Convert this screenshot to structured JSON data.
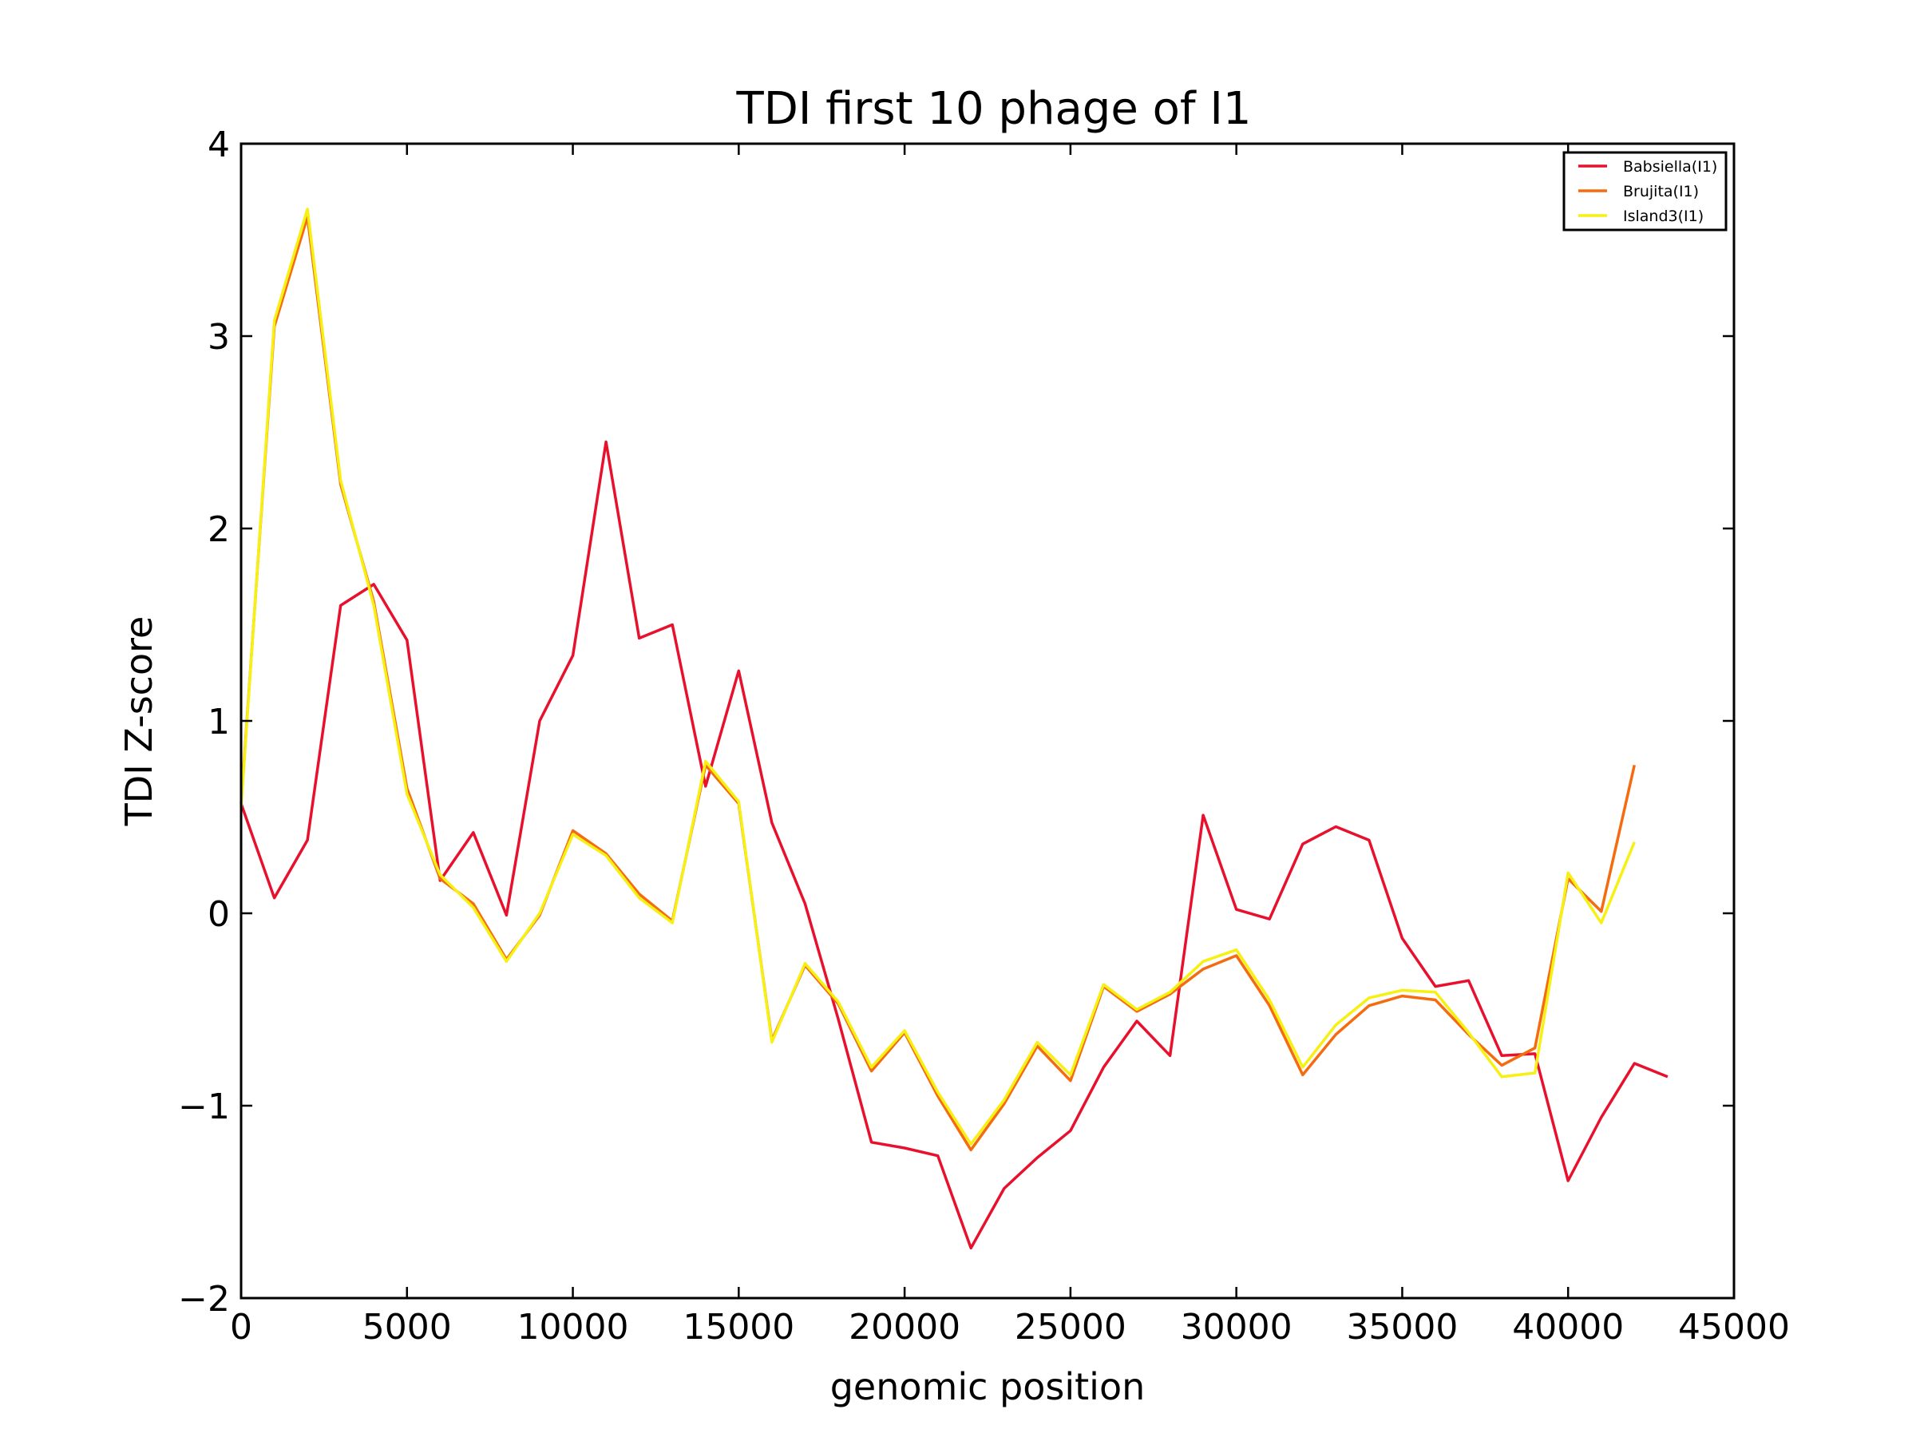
{
  "chart_data": {
    "type": "line",
    "title": "TDI first 10 phage of I1",
    "xlabel": "genomic position",
    "ylabel": "TDI Z-score",
    "xlim": [
      0,
      45000
    ],
    "ylim": [
      -2,
      4
    ],
    "xticks": [
      0,
      5000,
      10000,
      15000,
      20000,
      25000,
      30000,
      35000,
      40000,
      45000
    ],
    "xtick_labels": [
      "0",
      "5000",
      "10000",
      "15000",
      "20000",
      "25000",
      "30000",
      "35000",
      "40000",
      "45000"
    ],
    "yticks": [
      -2,
      -1,
      0,
      1,
      2,
      3,
      4
    ],
    "ytick_labels": [
      "−2",
      "−1",
      "0",
      "1",
      "2",
      "3",
      "4"
    ],
    "grid": false,
    "legend_position": "top-right",
    "series": [
      {
        "name": "Babsiella(I1)",
        "color": "#e8112d",
        "x": [
          0,
          1000,
          2000,
          3000,
          4000,
          5000,
          6000,
          7000,
          8000,
          9000,
          10000,
          11000,
          12000,
          13000,
          14000,
          15000,
          16000,
          17000,
          18000,
          19000,
          20000,
          21000,
          22000,
          23000,
          24000,
          25000,
          26000,
          27000,
          28000,
          29000,
          30000,
          31000,
          32000,
          33000,
          34000,
          35000,
          36000,
          37000,
          38000,
          39000,
          40000,
          41000,
          42000,
          43000
        ],
        "y": [
          0.57,
          0.08,
          0.38,
          1.6,
          1.71,
          1.42,
          0.17,
          0.42,
          -0.01,
          1.0,
          1.34,
          2.45,
          1.43,
          1.5,
          0.66,
          1.26,
          0.47,
          0.05,
          -0.55,
          -1.19,
          -1.22,
          -1.26,
          -1.74,
          -1.43,
          -1.27,
          -1.13,
          -0.8,
          -0.56,
          -0.74,
          0.51,
          0.02,
          -0.03,
          0.36,
          0.45,
          0.38,
          -0.13,
          -0.38,
          -0.35,
          -0.74,
          -0.73,
          -1.39,
          -1.06,
          -0.78,
          -0.85
        ]
      },
      {
        "name": "Brujita(I1)",
        "color": "#f56b0f",
        "x": [
          0,
          1000,
          2000,
          3000,
          4000,
          5000,
          6000,
          7000,
          8000,
          9000,
          10000,
          11000,
          12000,
          13000,
          14000,
          15000,
          16000,
          17000,
          18000,
          19000,
          20000,
          21000,
          22000,
          23000,
          24000,
          25000,
          26000,
          27000,
          28000,
          29000,
          30000,
          31000,
          32000,
          33000,
          34000,
          35000,
          36000,
          37000,
          38000,
          39000,
          40000,
          41000,
          42000
        ],
        "y": [
          0.57,
          3.05,
          3.62,
          2.23,
          1.62,
          0.65,
          0.18,
          0.05,
          -0.24,
          -0.01,
          0.43,
          0.31,
          0.1,
          -0.04,
          0.77,
          0.57,
          -0.66,
          -0.27,
          -0.47,
          -0.82,
          -0.62,
          -0.95,
          -1.23,
          -0.99,
          -0.69,
          -0.87,
          -0.38,
          -0.51,
          -0.42,
          -0.29,
          -0.22,
          -0.48,
          -0.84,
          -0.63,
          -0.48,
          -0.43,
          -0.45,
          -0.63,
          -0.79,
          -0.7,
          0.18,
          0.01,
          0.77
        ]
      },
      {
        "name": "Island3(I1)",
        "color": "#f6f013",
        "x": [
          0,
          1000,
          2000,
          3000,
          4000,
          5000,
          6000,
          7000,
          8000,
          9000,
          10000,
          11000,
          12000,
          13000,
          14000,
          15000,
          16000,
          17000,
          18000,
          19000,
          20000,
          21000,
          22000,
          23000,
          24000,
          25000,
          26000,
          27000,
          28000,
          29000,
          30000,
          31000,
          32000,
          33000,
          34000,
          35000,
          36000,
          37000,
          38000,
          39000,
          40000,
          41000,
          42000
        ],
        "y": [
          0.55,
          3.08,
          3.66,
          2.25,
          1.6,
          0.62,
          0.2,
          0.03,
          -0.25,
          0.0,
          0.41,
          0.3,
          0.08,
          -0.05,
          0.79,
          0.58,
          -0.67,
          -0.26,
          -0.46,
          -0.8,
          -0.61,
          -0.93,
          -1.2,
          -0.97,
          -0.67,
          -0.84,
          -0.37,
          -0.5,
          -0.41,
          -0.25,
          -0.19,
          -0.45,
          -0.8,
          -0.58,
          -0.44,
          -0.4,
          -0.41,
          -0.62,
          -0.85,
          -0.83,
          0.21,
          -0.05,
          0.37
        ]
      }
    ]
  }
}
